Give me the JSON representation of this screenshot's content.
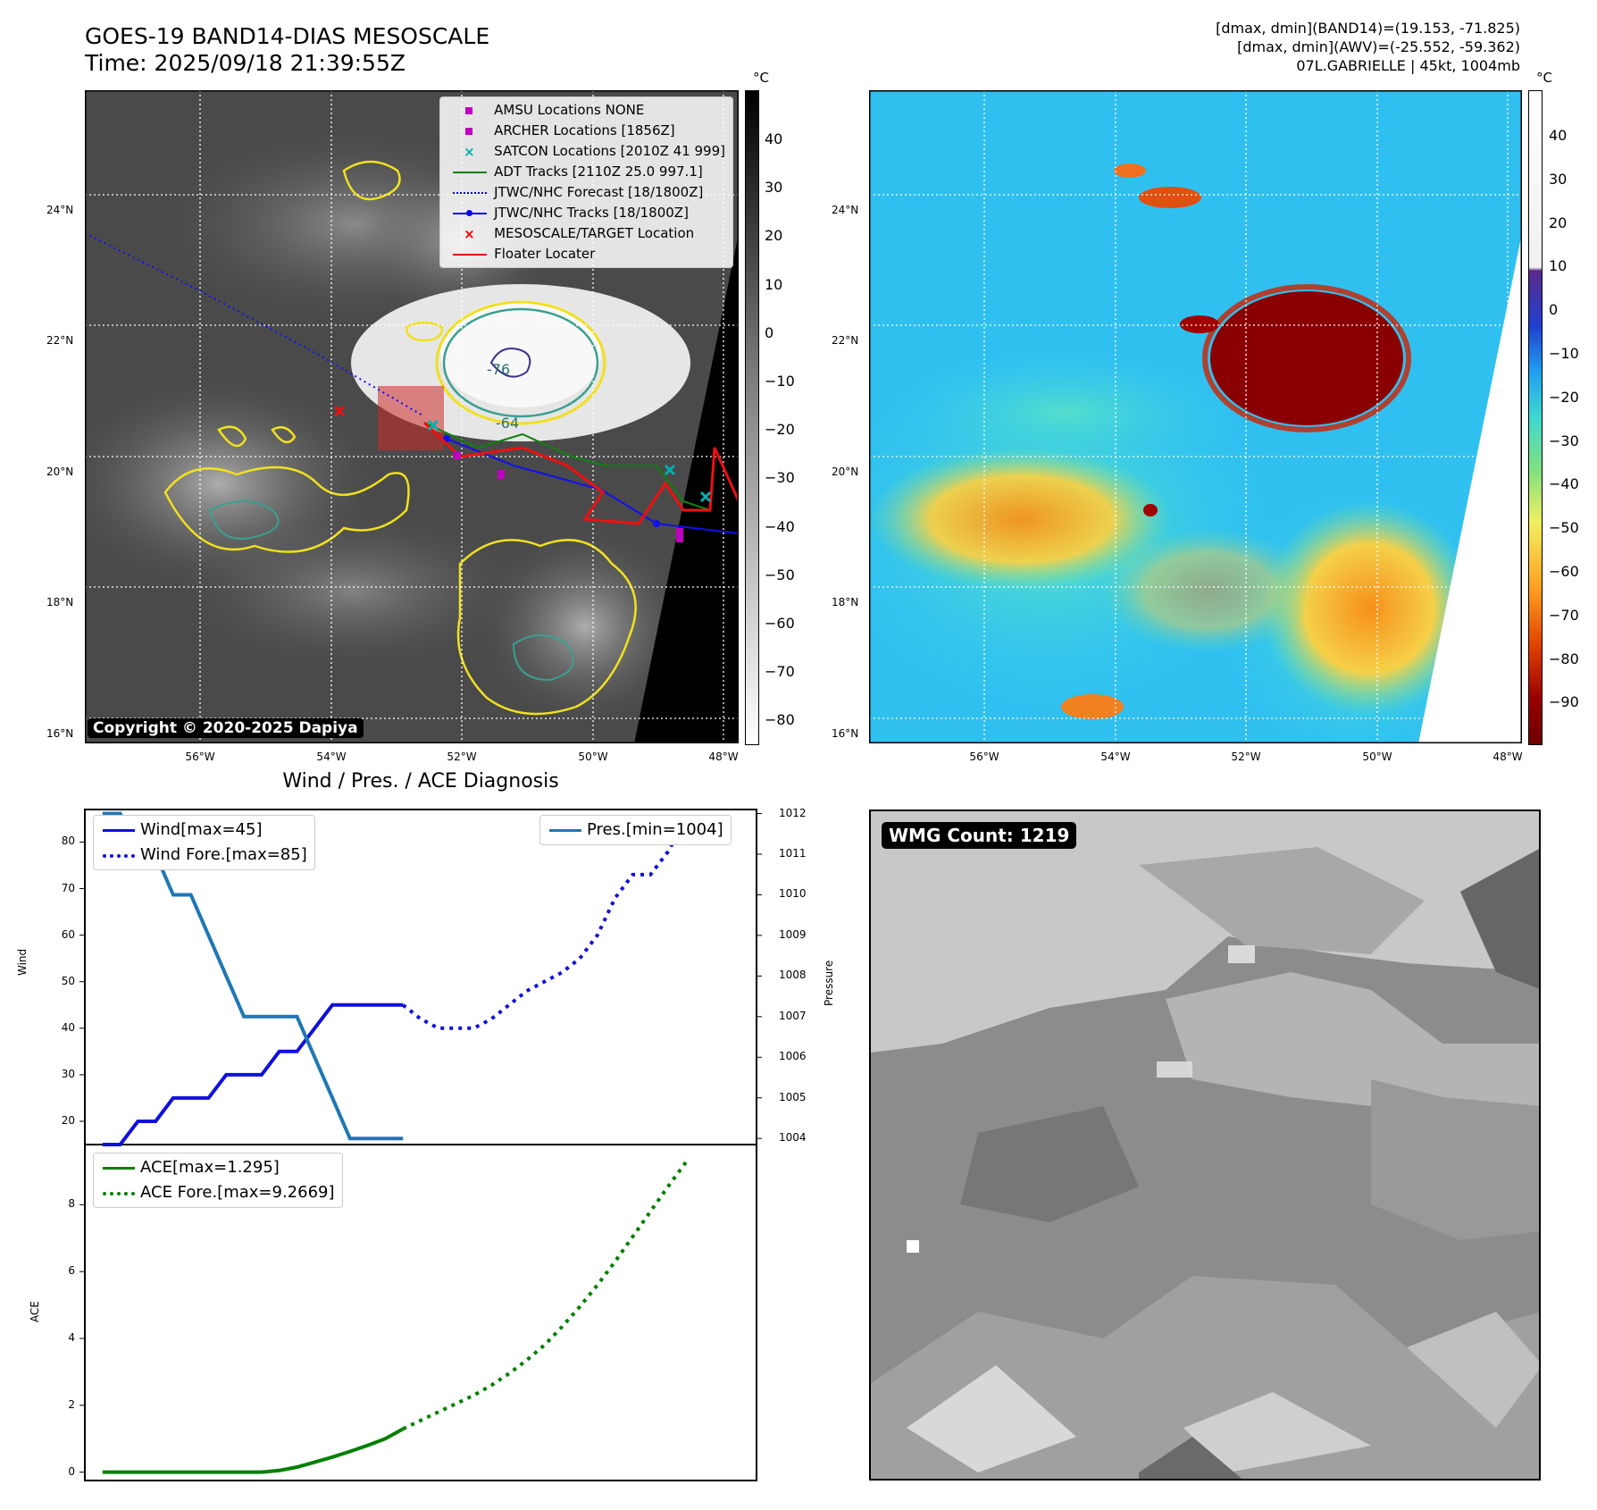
{
  "header": {
    "title": "GOES-19 BAND14-DIAS MESOSCALE",
    "time": "Time: 2025/09/18 21:39:55Z",
    "stats_line1": "[dmax, dmin](BAND14)=(19.153, -71.825)",
    "stats_line2": "[dmax, dmin](AWV)=(-25.552, -59.362)",
    "storm_line": "07L.GABRIELLE | 45kt, 1004mb"
  },
  "map_axes": {
    "lat_labels": [
      "24°N",
      "22°N",
      "20°N",
      "18°N",
      "16°N"
    ],
    "lon_labels": [
      "56°W",
      "54°W",
      "52°W",
      "50°W",
      "48°W"
    ]
  },
  "ir_panel": {
    "legend": [
      {
        "label": "AMSU Locations NONE",
        "color": "#c000c0",
        "symbol": "square"
      },
      {
        "label": "ARCHER Locations [1856Z]",
        "color": "#c000c0",
        "symbol": "square"
      },
      {
        "label": "SATCON Locations [2010Z 41 999]",
        "color": "#00b0b0",
        "symbol": "x"
      },
      {
        "label": "ADT Tracks [2110Z 25.0 997.1]",
        "color": "#008000",
        "symbol": "line"
      },
      {
        "label": "JTWC/NHC Forecast [18/1800Z]",
        "color": "#0000ee",
        "symbol": "dotted"
      },
      {
        "label": "JTWC/NHC Tracks [18/1800Z]",
        "color": "#0000ee",
        "symbol": "line-dot"
      },
      {
        "label": "MESOSCALE/TARGET Location",
        "color": "#ee0000",
        "symbol": "x"
      },
      {
        "label": "Floater Locater",
        "color": "#ee0000",
        "symbol": "line"
      }
    ],
    "contour_labels": [
      "-76",
      "-64"
    ],
    "copyright": "Copyright © 2020-2025 Dapiya",
    "colorbar_unit": "°C",
    "colorbar_ticks": [
      "40",
      "30",
      "20",
      "10",
      "0",
      "−10",
      "−20",
      "−30",
      "−40",
      "−50",
      "−60",
      "−70",
      "−80"
    ]
  },
  "color_panel": {
    "colorbar_unit": "°C",
    "colorbar_ticks": [
      "40",
      "30",
      "20",
      "10",
      "0",
      "−10",
      "−20",
      "−30",
      "−40",
      "−50",
      "−60",
      "−70",
      "−80",
      "−90"
    ]
  },
  "diag_title": "Wind / Pres. / ACE Diagnosis",
  "chart_data": [
    {
      "type": "line",
      "title": "Wind / Pres. / ACE Diagnosis",
      "ylabel": "Wind",
      "y2label": "Pressure",
      "ylim": [
        15,
        87
      ],
      "y2lim": [
        1003.85,
        1012.1
      ],
      "y_ticks": [
        "80",
        "70",
        "60",
        "50",
        "40",
        "30",
        "20"
      ],
      "y2_ticks": [
        "1012",
        "1011",
        "1010",
        "1009",
        "1008",
        "1007",
        "1006",
        "1005",
        "1004"
      ],
      "xlim": [
        -1,
        37
      ],
      "series": [
        {
          "name": "Wind[max=45]",
          "style": "solid",
          "color": "#1010dd",
          "x": [
            0,
            1,
            2,
            3,
            4,
            5,
            6,
            7,
            8,
            9,
            10,
            11,
            12,
            13,
            14,
            15,
            16,
            17
          ],
          "values": [
            15,
            15,
            20,
            20,
            25,
            25,
            25,
            30,
            30,
            30,
            35,
            35,
            40,
            45,
            45,
            45,
            45,
            45
          ]
        },
        {
          "name": "Wind Fore.[max=85]",
          "style": "dotted",
          "color": "#1010dd",
          "x": [
            17,
            18,
            19,
            20,
            21,
            22,
            23,
            24,
            25,
            26,
            27,
            28,
            29,
            30,
            31,
            32,
            33
          ],
          "values": [
            45,
            42,
            40,
            40,
            40,
            42,
            45,
            48,
            50,
            52,
            55,
            60,
            68,
            73,
            73,
            78,
            85
          ]
        },
        {
          "name": "Pres.[min=1004]",
          "style": "solid",
          "color": "#1f77b4",
          "x": [
            0,
            1,
            2,
            3,
            4,
            5,
            6,
            7,
            8,
            9,
            10,
            11,
            12,
            13,
            14,
            15,
            16,
            17
          ],
          "values": [
            1012,
            1012,
            1011,
            1011,
            1010,
            1010,
            1009,
            1008,
            1007,
            1007,
            1007,
            1007,
            1006,
            1005,
            1004,
            1004,
            1004,
            1004
          ]
        }
      ]
    },
    {
      "type": "line",
      "ylabel": "ACE",
      "ylim": [
        -0.25,
        9.8
      ],
      "y_ticks": [
        "8",
        "6",
        "4",
        "2",
        "0"
      ],
      "xlim": [
        -1,
        37
      ],
      "series": [
        {
          "name": "ACE[max=1.295]",
          "style": "solid",
          "color": "#008000",
          "x": [
            0,
            1,
            2,
            3,
            4,
            5,
            6,
            7,
            8,
            9,
            10,
            11,
            12,
            13,
            14,
            15,
            16,
            17
          ],
          "values": [
            0,
            0,
            0,
            0,
            0,
            0,
            0,
            0,
            0,
            0,
            0.05,
            0.15,
            0.3,
            0.45,
            0.62,
            0.8,
            1.0,
            1.295
          ]
        },
        {
          "name": "ACE Fore.[max=9.2669]",
          "style": "dotted",
          "color": "#008000",
          "x": [
            17,
            18,
            19,
            20,
            21,
            22,
            23,
            24,
            25,
            26,
            27,
            28,
            29,
            30,
            31,
            32,
            33
          ],
          "values": [
            1.295,
            1.55,
            1.8,
            2.05,
            2.3,
            2.6,
            2.95,
            3.35,
            3.8,
            4.35,
            4.95,
            5.6,
            6.3,
            7.05,
            7.8,
            8.55,
            9.2669
          ]
        }
      ]
    }
  ],
  "wmg_panel": {
    "count_label": "WMG Count: 1219"
  }
}
